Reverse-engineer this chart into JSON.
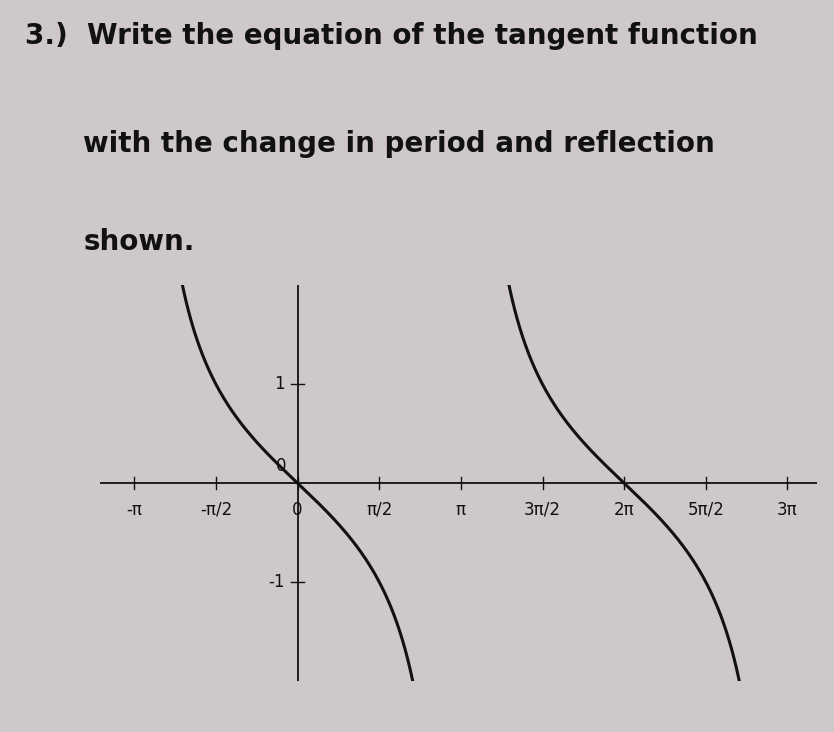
{
  "title_line1": "3.)  Write the equation of the tangent function",
  "title_line2": "with the change in period and reflection",
  "title_line3": "shown.",
  "background_color": "#cfc8c8",
  "curve_color": "#111111",
  "axis_color": "#111111",
  "xlim_left": -3.8,
  "xlim_right": 10.0,
  "ylim_bottom": -2.0,
  "ylim_top": 2.0,
  "yticks": [
    -1,
    1
  ],
  "xtick_labels": [
    "-π",
    "-π/2",
    "0",
    "π/2",
    "π",
    "3π/2",
    "2π",
    "5π/2",
    "3π"
  ],
  "xtick_vals": [
    -3.14159,
    -1.5708,
    0,
    1.5708,
    3.14159,
    4.71239,
    6.28318,
    7.85398,
    9.42478
  ],
  "line_width": 2.2,
  "title_fontsize": 20,
  "tick_fontsize": 12,
  "title_color": "#111111"
}
